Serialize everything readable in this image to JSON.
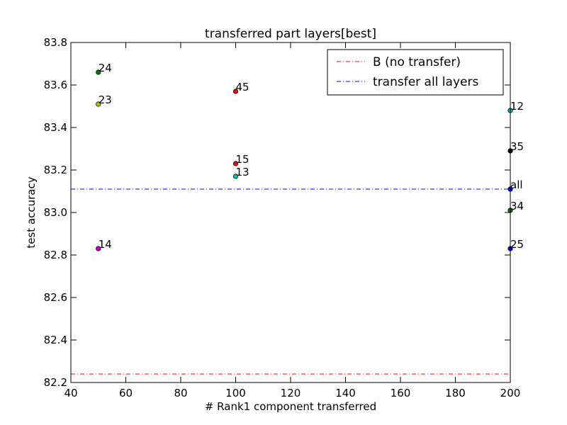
{
  "chart_data": {
    "type": "scatter",
    "title": "transferred part layers[best]",
    "xlabel": "# Rank1 component transferred",
    "ylabel": "test accuracy",
    "xlim": [
      40,
      200
    ],
    "ylim": [
      82.2,
      83.8
    ],
    "xticks": [
      "40",
      "60",
      "80",
      "100",
      "120",
      "140",
      "160",
      "180",
      "200"
    ],
    "yticks": [
      "82.2",
      "82.4",
      "82.6",
      "82.8",
      "83.0",
      "83.2",
      "83.4",
      "83.6",
      "83.8"
    ],
    "grid": false,
    "legend_position": "top-right",
    "points": [
      {
        "label": "24",
        "x": 50,
        "y": 83.66,
        "color": "#008000"
      },
      {
        "label": "23",
        "x": 50,
        "y": 83.51,
        "color": "#bfbf00"
      },
      {
        "label": "14",
        "x": 50,
        "y": 82.83,
        "color": "#bf00bf"
      },
      {
        "label": "45",
        "x": 100,
        "y": 83.57,
        "color": "#ff0000"
      },
      {
        "label": "15",
        "x": 100,
        "y": 83.23,
        "color": "#ff0000"
      },
      {
        "label": "13",
        "x": 100,
        "y": 83.17,
        "color": "#00bfbf"
      },
      {
        "label": "12",
        "x": 200,
        "y": 83.48,
        "color": "#00bfbf"
      },
      {
        "label": "35",
        "x": 200,
        "y": 83.29,
        "color": "#000000"
      },
      {
        "label": "all",
        "x": 200,
        "y": 83.11,
        "color": "#0000ff"
      },
      {
        "label": "34",
        "x": 200,
        "y": 83.01,
        "color": "#008000"
      },
      {
        "label": "25",
        "x": 200,
        "y": 82.83,
        "color": "#0000ff"
      }
    ],
    "reference_lines": [
      {
        "name": "B (no transfer)",
        "y": 82.24,
        "color": "#ff0000",
        "style": "dash-dot"
      },
      {
        "name": "transfer all layers",
        "y": 83.11,
        "color": "#0000ff",
        "style": "dash-dot"
      }
    ]
  }
}
